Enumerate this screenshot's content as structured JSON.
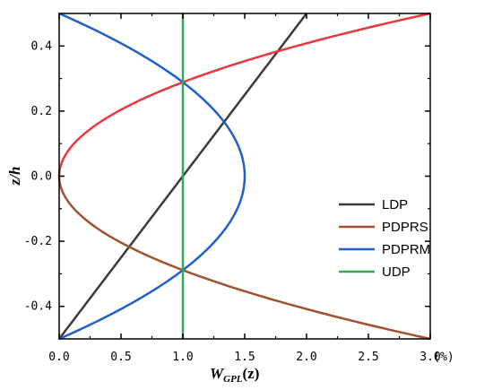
{
  "chart_data": {
    "type": "line",
    "xlabel": "W",
    "xlabel_sub": "GPL",
    "xlabel_suffix": "(z)",
    "x_unit": "(%)",
    "ylabel": "z/h",
    "xlim": [
      0,
      3.0
    ],
    "ylim": [
      -0.5,
      0.5
    ],
    "xticks": [
      "0.0",
      "0.5",
      "1.0",
      "1.5",
      "2.0",
      "2.5",
      "3.0"
    ],
    "yticks": [
      "-0.4",
      "-0.2",
      "0.0",
      "0.2",
      "0.4"
    ],
    "grid": false,
    "legend_position": "center-right",
    "series": [
      {
        "name": "LDP",
        "color": "#3a3a3a",
        "formula": "2*(z+0.5)"
      },
      {
        "name": "PDPRS",
        "color": "#a0522d",
        "lower_color": "#a0522d",
        "upper_color": "#e8383d",
        "formula": "12*z^2"
      },
      {
        "name": "PDPRM",
        "color": "#1f5fcf",
        "formula": "1.5-6*z^2"
      },
      {
        "name": "UDP",
        "color": "#35a852",
        "formula": "1"
      }
    ]
  }
}
